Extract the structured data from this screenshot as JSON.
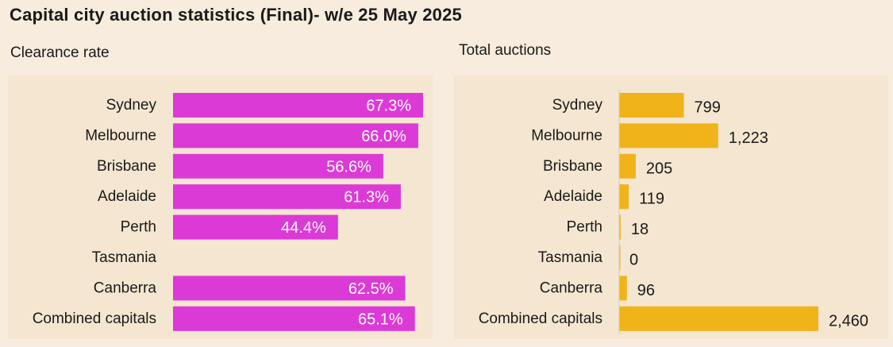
{
  "title": "Capital city auction statistics (Final)- w/e 25 May 2025",
  "colors": {
    "clearance_bar": "#dc3ad6",
    "auctions_bar": "#f0b31a",
    "panel": "#f4e6d0",
    "background": "#f7ecdd"
  },
  "chart_data": [
    {
      "type": "bar",
      "orientation": "horizontal",
      "title": "Clearance rate",
      "categories": [
        "Sydney",
        "Melbourne",
        "Brisbane",
        "Adelaide",
        "Perth",
        "Tasmania",
        "Canberra",
        "Combined capitals"
      ],
      "values": [
        67.3,
        66.0,
        56.6,
        61.3,
        44.4,
        null,
        62.5,
        65.1
      ],
      "labels": [
        "67.3%",
        "66.0%",
        "56.6%",
        "61.3%",
        "44.4%",
        "",
        "62.5%",
        "65.1%"
      ],
      "xlim": [
        0,
        67.3
      ]
    },
    {
      "type": "bar",
      "orientation": "horizontal",
      "title": "Total auctions",
      "categories": [
        "Sydney",
        "Melbourne",
        "Brisbane",
        "Adelaide",
        "Perth",
        "Tasmania",
        "Canberra",
        "Combined capitals"
      ],
      "values": [
        799,
        1223,
        205,
        119,
        18,
        0,
        96,
        2460
      ],
      "labels": [
        "799",
        "1,223",
        "205",
        "119",
        "18",
        "0",
        "96",
        "2,460"
      ],
      "xlim": [
        0,
        2460
      ]
    }
  ]
}
